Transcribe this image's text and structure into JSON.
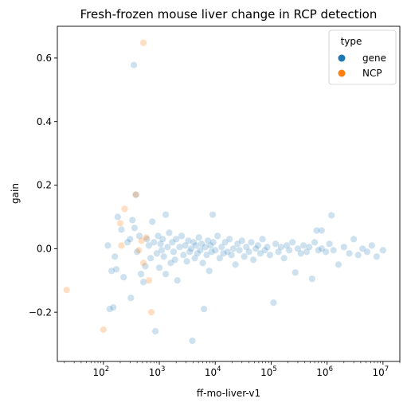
{
  "chart_data": {
    "type": "scatter",
    "title": "Fresh-frozen mouse liver change in RCP detection",
    "xlabel": "ff-mo-liver-v1",
    "ylabel": "gain",
    "x_scale": "log",
    "xlim": [
      15,
      20000000
    ],
    "ylim": [
      -0.355,
      0.7
    ],
    "x_ticks": [
      {
        "value": 100,
        "base": "10",
        "exp": "2"
      },
      {
        "value": 1000,
        "base": "10",
        "exp": "3"
      },
      {
        "value": 10000,
        "base": "10",
        "exp": "4"
      },
      {
        "value": 100000,
        "base": "10",
        "exp": "5"
      },
      {
        "value": 1000000,
        "base": "10",
        "exp": "6"
      },
      {
        "value": 10000000,
        "base": "10",
        "exp": "7"
      }
    ],
    "y_ticks": [
      {
        "value": -0.2,
        "label": "−0.2"
      },
      {
        "value": 0.0,
        "label": "0.0"
      },
      {
        "value": 0.2,
        "label": "0.2"
      },
      {
        "value": 0.4,
        "label": "0.4"
      },
      {
        "value": 0.6,
        "label": "0.6"
      }
    ],
    "grid": false,
    "legend": {
      "title": "type",
      "placement": "top-right"
    },
    "series": [
      {
        "name": "gene",
        "color": "#1f77b4",
        "opacity": 0.22,
        "points": [
          [
            350,
            0.578
          ],
          [
            380,
            0.17
          ],
          [
            1300,
            0.107
          ],
          [
            9000,
            0.107
          ],
          [
            1200000,
            0.105
          ],
          [
            800000,
            0.057
          ],
          [
            650000,
            0.057
          ],
          [
            120,
            0.01
          ],
          [
            130,
            -0.19
          ],
          [
            140,
            -0.07
          ],
          [
            150,
            -0.185
          ],
          [
            160,
            -0.025
          ],
          [
            170,
            -0.065
          ],
          [
            180,
            0.1
          ],
          [
            210,
            0.06
          ],
          [
            230,
            -0.09
          ],
          [
            270,
            0.02
          ],
          [
            300,
            0.03
          ],
          [
            310,
            -0.155
          ],
          [
            330,
            0.09
          ],
          [
            360,
            0.065
          ],
          [
            400,
            -0.01
          ],
          [
            440,
            0.04
          ],
          [
            470,
            -0.08
          ],
          [
            520,
            -0.105
          ],
          [
            560,
            -0.055
          ],
          [
            600,
            0.03
          ],
          [
            650,
            0.01
          ],
          [
            700,
            -0.03
          ],
          [
            750,
            0.085
          ],
          [
            800,
            0.02
          ],
          [
            850,
            -0.26
          ],
          [
            900,
            -0.015
          ],
          [
            950,
            0.04
          ],
          [
            1000,
            -0.06
          ],
          [
            1050,
            0.015
          ],
          [
            1100,
            -0.005
          ],
          [
            1150,
            0.03
          ],
          [
            1200,
            -0.025
          ],
          [
            1300,
            -0.08
          ],
          [
            1400,
            0.005
          ],
          [
            1500,
            0.05
          ],
          [
            1600,
            -0.045
          ],
          [
            1700,
            0.02
          ],
          [
            1800,
            -0.01
          ],
          [
            1900,
            -0.035
          ],
          [
            2000,
            0.03
          ],
          [
            2100,
            -0.1
          ],
          [
            2300,
            0.005
          ],
          [
            2500,
            0.04
          ],
          [
            2700,
            -0.02
          ],
          [
            2900,
            0.01
          ],
          [
            3100,
            -0.04
          ],
          [
            3300,
            0.025
          ],
          [
            3500,
            -0.01
          ],
          [
            3700,
            0.0
          ],
          [
            3900,
            -0.29
          ],
          [
            4100,
            0.02
          ],
          [
            4300,
            -0.03
          ],
          [
            4500,
            0.01
          ],
          [
            4800,
            -0.015
          ],
          [
            5100,
            0.035
          ],
          [
            5400,
            -0.005
          ],
          [
            5700,
            0.015
          ],
          [
            6000,
            -0.045
          ],
          [
            6300,
            -0.19
          ],
          [
            6600,
            0.005
          ],
          [
            7000,
            -0.02
          ],
          [
            7400,
            0.025
          ],
          [
            7800,
            -0.07
          ],
          [
            8200,
            0.01
          ],
          [
            8600,
            -0.01
          ],
          [
            9200,
            0.02
          ],
          [
            10000,
            -0.005
          ],
          [
            11000,
            0.04
          ],
          [
            12000,
            -0.03
          ],
          [
            13000,
            0.005
          ],
          [
            14000,
            -0.015
          ],
          [
            15000,
            0.02
          ],
          [
            16500,
            -0.01
          ],
          [
            18000,
            0.03
          ],
          [
            19500,
            -0.02
          ],
          [
            21000,
            0.0
          ],
          [
            23000,
            -0.05
          ],
          [
            25000,
            0.015
          ],
          [
            27000,
            -0.005
          ],
          [
            30000,
            0.025
          ],
          [
            33000,
            -0.025
          ],
          [
            36000,
            0.005
          ],
          [
            40000,
            -0.01
          ],
          [
            44000,
            0.02
          ],
          [
            48000,
            -0.035
          ],
          [
            53000,
            0.0
          ],
          [
            58000,
            0.01
          ],
          [
            64000,
            -0.015
          ],
          [
            70000,
            0.03
          ],
          [
            77000,
            -0.005
          ],
          [
            85000,
            0.005
          ],
          [
            95000,
            -0.02
          ],
          [
            110000,
            -0.17
          ],
          [
            120000,
            0.015
          ],
          [
            135000,
            -0.01
          ],
          [
            150000,
            0.005
          ],
          [
            170000,
            -0.03
          ],
          [
            190000,
            0.01
          ],
          [
            210000,
            -0.005
          ],
          [
            240000,
            0.02
          ],
          [
            270000,
            -0.075
          ],
          [
            300000,
            0.0
          ],
          [
            340000,
            -0.015
          ],
          [
            380000,
            0.01
          ],
          [
            430000,
            -0.01
          ],
          [
            480000,
            0.005
          ],
          [
            540000,
            -0.095
          ],
          [
            600000,
            0.02
          ],
          [
            700000,
            -0.005
          ],
          [
            800000,
            0.0
          ],
          [
            950000,
            -0.01
          ],
          [
            1100000,
            0.015
          ],
          [
            1300000,
            -0.005
          ],
          [
            1600000,
            -0.05
          ],
          [
            2000000,
            0.005
          ],
          [
            2500000,
            -0.015
          ],
          [
            3000000,
            0.03
          ],
          [
            3600000,
            -0.02
          ],
          [
            4300000,
            0.0
          ],
          [
            5200000,
            -0.01
          ],
          [
            6300000,
            0.01
          ],
          [
            7700000,
            -0.025
          ],
          [
            10000000,
            -0.005
          ]
        ]
      },
      {
        "name": "NCP",
        "color": "#ff7f0e",
        "opacity": 0.25,
        "points": [
          [
            520,
            0.648
          ],
          [
            22,
            -0.13
          ],
          [
            100,
            -0.255
          ],
          [
            200,
            0.08
          ],
          [
            210,
            0.01
          ],
          [
            240,
            0.125
          ],
          [
            380,
            0.17
          ],
          [
            430,
            -0.005
          ],
          [
            480,
            0.025
          ],
          [
            520,
            -0.045
          ],
          [
            580,
            0.035
          ],
          [
            650,
            -0.1
          ],
          [
            720,
            -0.2
          ]
        ]
      }
    ]
  }
}
